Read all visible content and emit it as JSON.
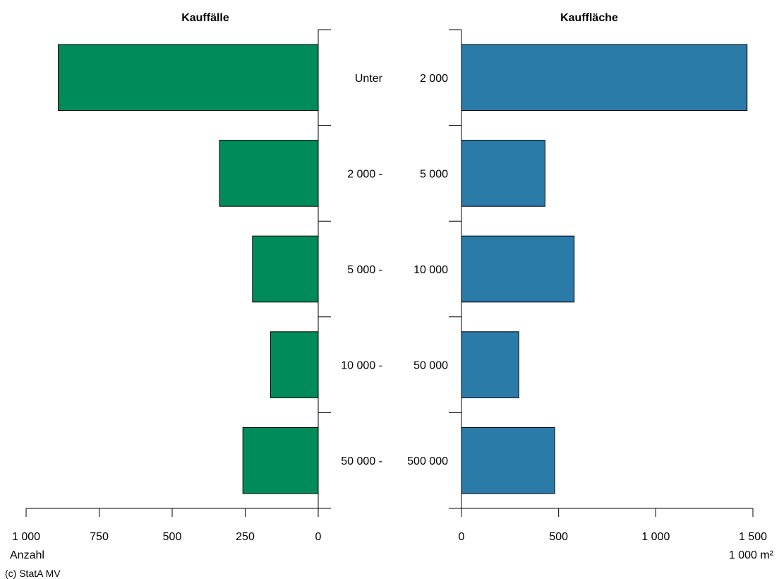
{
  "chart_data": [
    {
      "type": "bar",
      "orientation": "horizontal",
      "direction": "left",
      "title": "Kauffälle",
      "xlabel": "Anzahl",
      "xlim": [
        0,
        1000
      ],
      "ticks": [
        {
          "value": 0,
          "label": "0"
        },
        {
          "value": 250,
          "label": "250"
        },
        {
          "value": 500,
          "label": "500"
        },
        {
          "value": 750,
          "label": "750"
        },
        {
          "value": 1000,
          "label": "1 000"
        }
      ],
      "values": [
        890,
        338,
        225,
        163,
        258
      ],
      "color": "#008C5A"
    },
    {
      "type": "bar",
      "orientation": "horizontal",
      "direction": "right",
      "title": "Kauffläche",
      "xlabel": "1 000 m²",
      "xlim": [
        0,
        1500
      ],
      "ticks": [
        {
          "value": 0,
          "label": "0"
        },
        {
          "value": 500,
          "label": "500"
        },
        {
          "value": 1000,
          "label": "1 000"
        },
        {
          "value": 1500,
          "label": "1 500"
        }
      ],
      "values": [
        1470,
        430,
        580,
        295,
        480
      ],
      "color": "#2A7BA8"
    }
  ],
  "categories": [
    {
      "left": "Unter",
      "right": "2 000"
    },
    {
      "left": "2 000 -",
      "right": "5 000"
    },
    {
      "left": "5 000 -",
      "right": "10 000"
    },
    {
      "left": "10 000 -",
      "right": "50 000"
    },
    {
      "left": "50 000 -",
      "right": "500 000"
    }
  ],
  "source": "(c) StatA MV"
}
